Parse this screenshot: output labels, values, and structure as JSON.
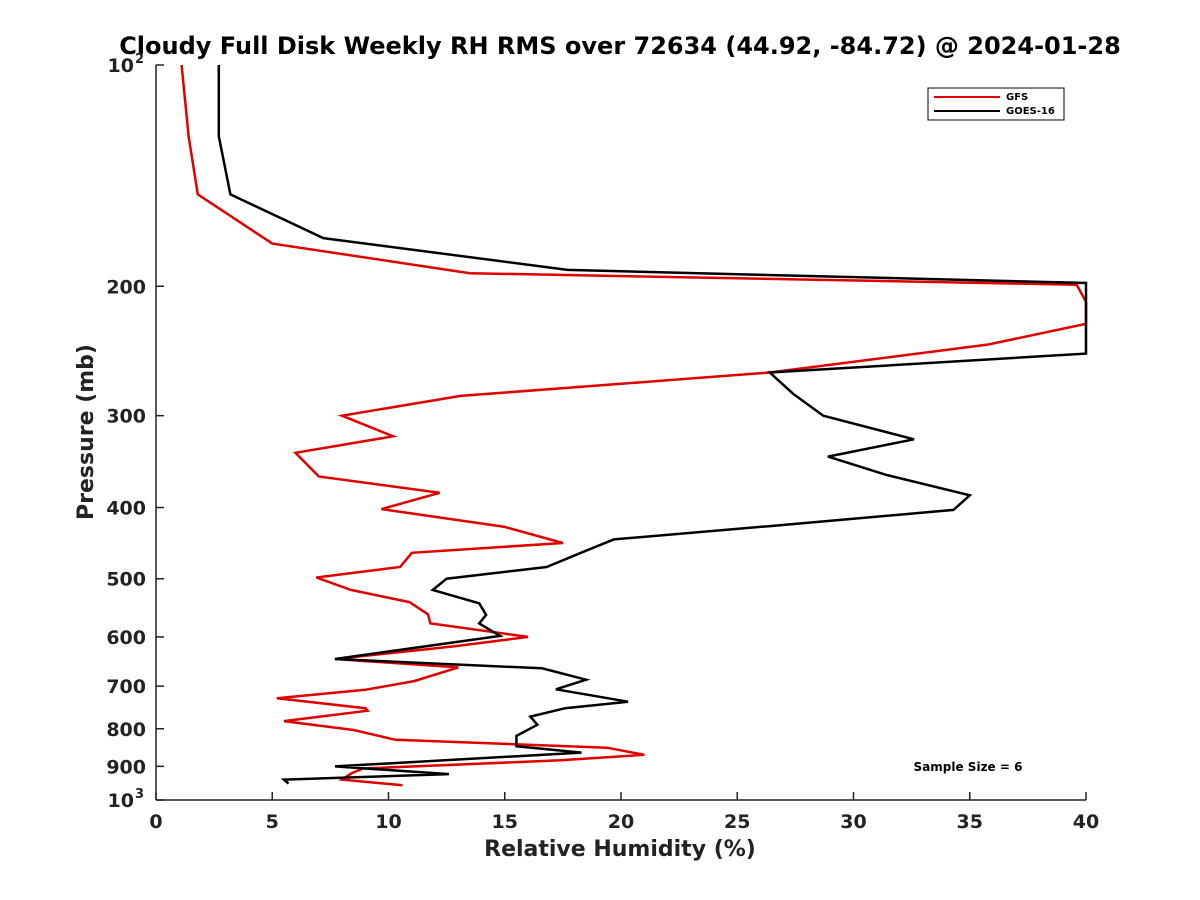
{
  "chart_data": {
    "type": "line",
    "title": "Cloudy Full Disk Weekly RH RMS over 72634 (44.92, -84.72) @ 2024-01-28",
    "xlabel": "Relative Humidity (%)",
    "ylabel": "Pressure (mb)",
    "xlim": [
      0,
      40
    ],
    "ylim": [
      100,
      1000
    ],
    "y_scale": "log",
    "y_reversed": true,
    "grid": false,
    "legend_position": "top-right",
    "x_ticks": [
      {
        "value": 0,
        "label": "0"
      },
      {
        "value": 5,
        "label": "5"
      },
      {
        "value": 10,
        "label": "10"
      },
      {
        "value": 15,
        "label": "15"
      },
      {
        "value": 20,
        "label": "20"
      },
      {
        "value": 25,
        "label": "25"
      },
      {
        "value": 30,
        "label": "30"
      },
      {
        "value": 35,
        "label": "35"
      },
      {
        "value": 40,
        "label": "40"
      }
    ],
    "y_ticks": [
      {
        "value": 100,
        "label": "10",
        "sup": "2"
      },
      {
        "value": 200,
        "label": "200",
        "sup": ""
      },
      {
        "value": 300,
        "label": "300",
        "sup": ""
      },
      {
        "value": 400,
        "label": "400",
        "sup": ""
      },
      {
        "value": 500,
        "label": "500",
        "sup": ""
      },
      {
        "value": 600,
        "label": "600",
        "sup": ""
      },
      {
        "value": 700,
        "label": "700",
        "sup": ""
      },
      {
        "value": 800,
        "label": "800",
        "sup": ""
      },
      {
        "value": 900,
        "label": "900",
        "sup": ""
      },
      {
        "value": 1000,
        "label": "10",
        "sup": "3"
      }
    ],
    "annotation": "Sample Size = 6",
    "series": [
      {
        "name": "GFS",
        "color": "#e00000",
        "points": [
          [
            1.1,
            100
          ],
          [
            1.4,
            125
          ],
          [
            1.8,
            150
          ],
          [
            5.0,
            175
          ],
          [
            13.5,
            192
          ],
          [
            39.6,
            199
          ],
          [
            40.0,
            210
          ],
          [
            40.0,
            225
          ],
          [
            35.8,
            240
          ],
          [
            26.4,
            262
          ],
          [
            13.1,
            282
          ],
          [
            8.0,
            300
          ],
          [
            10.2,
            320
          ],
          [
            6.0,
            337
          ],
          [
            7.0,
            363
          ],
          [
            12.2,
            382
          ],
          [
            9.7,
            402
          ],
          [
            15.0,
            425
          ],
          [
            17.5,
            447
          ],
          [
            11.0,
            461
          ],
          [
            10.5,
            482
          ],
          [
            6.9,
            498
          ],
          [
            8.4,
            518
          ],
          [
            10.9,
            538
          ],
          [
            11.7,
            559
          ],
          [
            11.8,
            575
          ],
          [
            16.0,
            600
          ],
          [
            12.8,
            618
          ],
          [
            7.7,
            643
          ],
          [
            13.0,
            660
          ],
          [
            11.1,
            689
          ],
          [
            9.0,
            708
          ],
          [
            5.2,
            727
          ],
          [
            9.0,
            750
          ],
          [
            9.1,
            756
          ],
          [
            5.5,
            781
          ],
          [
            8.5,
            803
          ],
          [
            10.3,
            828
          ],
          [
            19.4,
            849
          ],
          [
            21.0,
            868
          ],
          [
            17.4,
            883
          ],
          [
            8.9,
            906
          ],
          [
            8.4,
            920
          ],
          [
            8.0,
            938
          ],
          [
            10.6,
            955
          ]
        ]
      },
      {
        "name": "GOES-16",
        "color": "#000000",
        "points": [
          [
            2.7,
            100
          ],
          [
            2.7,
            125
          ],
          [
            3.2,
            150
          ],
          [
            7.2,
            172
          ],
          [
            17.7,
            190
          ],
          [
            40.0,
            198
          ],
          [
            40.0,
            247
          ],
          [
            26.4,
            262
          ],
          [
            27.4,
            280
          ],
          [
            28.7,
            300
          ],
          [
            32.6,
            323
          ],
          [
            28.9,
            341
          ],
          [
            31.4,
            361
          ],
          [
            35.0,
            385
          ],
          [
            34.3,
            403
          ],
          [
            26.4,
            424
          ],
          [
            19.7,
            442
          ],
          [
            18.5,
            458
          ],
          [
            16.8,
            482
          ],
          [
            12.5,
            500
          ],
          [
            11.9,
            518
          ],
          [
            13.9,
            540
          ],
          [
            14.2,
            560
          ],
          [
            13.9,
            575
          ],
          [
            14.8,
            598
          ],
          [
            7.7,
            643
          ],
          [
            16.6,
            662
          ],
          [
            18.5,
            686
          ],
          [
            17.2,
            707
          ],
          [
            20.3,
            735
          ],
          [
            17.6,
            750
          ],
          [
            16.1,
            770
          ],
          [
            16.4,
            790
          ],
          [
            15.5,
            818
          ],
          [
            15.5,
            845
          ],
          [
            18.3,
            862
          ],
          [
            7.7,
            900
          ],
          [
            12.6,
            922
          ],
          [
            5.5,
            938
          ],
          [
            5.7,
            950
          ]
        ]
      }
    ]
  },
  "legend": {
    "items": [
      {
        "label": "GFS",
        "color": "#e00000"
      },
      {
        "label": "GOES-16",
        "color": "#000000"
      }
    ]
  }
}
